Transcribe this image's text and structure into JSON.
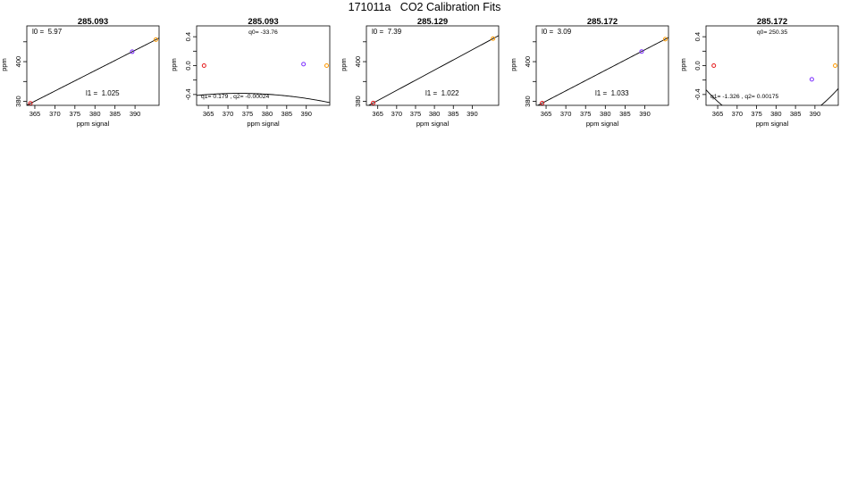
{
  "page": {
    "title": "171011a   CO2 Calibration Fits"
  },
  "chart_data": [
    {
      "type": "line",
      "title": "285.093",
      "xlabel": "ppm signal",
      "ylabel": "ppm",
      "xlim": [
        363,
        396
      ],
      "ylim": [
        378,
        418
      ],
      "xticks": [
        365,
        370,
        375,
        380,
        385,
        390
      ],
      "yticks": [
        380,
        390,
        400,
        410
      ],
      "yticklabels": [
        "380",
        "",
        "400",
        ""
      ],
      "fit": {
        "kind": "linear",
        "intercept": 5.97,
        "slope": 1.025
      },
      "points": [
        {
          "x": 363.9,
          "y": 379.0,
          "color": "#e41a1c"
        },
        {
          "x": 389.3,
          "y": 405.0,
          "color": "#7b2cff"
        },
        {
          "x": 395.2,
          "y": 411.1,
          "color": "#ff9900"
        }
      ],
      "annotations": [
        {
          "text": "l0 =  5.97",
          "pos": "top-left"
        },
        {
          "text": "l1 =  1.025",
          "pos": "bottom-right"
        }
      ]
    },
    {
      "type": "line",
      "title": "285.093",
      "xlabel": "ppm signal",
      "ylabel": "ppm",
      "xlim": [
        362,
        396
      ],
      "ylim": [
        -0.55,
        0.55
      ],
      "xticks": [
        365,
        370,
        375,
        380,
        385,
        390
      ],
      "yticks": [
        -0.4,
        -0.2,
        0.0,
        0.2,
        0.4
      ],
      "yticklabels": [
        "-0.4",
        "",
        "0.0",
        "",
        "0.4"
      ],
      "fit": {
        "kind": "quadratic",
        "q0": -33.76,
        "q1": 0.179,
        "q2": -0.00024
      },
      "points": [
        {
          "x": 363.9,
          "y": 0.0,
          "color": "#e41a1c"
        },
        {
          "x": 389.3,
          "y": 0.02,
          "color": "#7b2cff"
        },
        {
          "x": 395.2,
          "y": 0.0,
          "color": "#ff9900"
        }
      ],
      "annotations": [
        {
          "text": "q0= -33.76",
          "pos": "top-center"
        },
        {
          "text": "q1= 0.179 , q2= -0.00024",
          "pos": "bottom-left"
        }
      ]
    },
    {
      "type": "line",
      "title": "285.129",
      "xlabel": "ppm signal",
      "ylabel": "ppm",
      "xlim": [
        362,
        397
      ],
      "ylim": [
        378,
        418
      ],
      "xticks": [
        365,
        370,
        375,
        380,
        385,
        390
      ],
      "yticks": [
        380,
        390,
        400,
        410
      ],
      "yticklabels": [
        "380",
        "",
        "400",
        ""
      ],
      "fit": {
        "kind": "linear",
        "intercept": 7.39,
        "slope": 1.022
      },
      "points": [
        {
          "x": 363.8,
          "y": 379.2,
          "color": "#e41a1c"
        },
        {
          "x": 395.5,
          "y": 411.6,
          "color": "#ff9900"
        }
      ],
      "annotations": [
        {
          "text": "l0 =  7.39",
          "pos": "top-left"
        },
        {
          "text": "l1 =  1.022",
          "pos": "bottom-right"
        }
      ]
    },
    {
      "type": "line",
      "title": "285.172",
      "xlabel": "ppm signal",
      "ylabel": "ppm",
      "xlim": [
        362.5,
        396
      ],
      "ylim": [
        378,
        418
      ],
      "xticks": [
        365,
        370,
        375,
        380,
        385,
        390
      ],
      "yticks": [
        380,
        390,
        400,
        410
      ],
      "yticklabels": [
        "380",
        "",
        "400",
        ""
      ],
      "fit": {
        "kind": "linear",
        "intercept": 3.09,
        "slope": 1.033
      },
      "points": [
        {
          "x": 364.0,
          "y": 379.1,
          "color": "#e41a1c"
        },
        {
          "x": 389.2,
          "y": 405.1,
          "color": "#7b2cff"
        },
        {
          "x": 395.2,
          "y": 411.3,
          "color": "#ff9900"
        }
      ],
      "annotations": [
        {
          "text": "l0 =  3.09",
          "pos": "top-left"
        },
        {
          "text": "l1 =  1.033",
          "pos": "bottom-right"
        }
      ]
    },
    {
      "type": "line",
      "title": "285.172",
      "xlabel": "ppm signal",
      "ylabel": "ppm",
      "xlim": [
        362,
        396
      ],
      "ylim": [
        -0.55,
        0.55
      ],
      "xticks": [
        365,
        370,
        375,
        380,
        385,
        390
      ],
      "yticks": [
        -0.4,
        -0.2,
        0.0,
        0.2,
        0.4
      ],
      "yticklabels": [
        "-0.4",
        "",
        "0.0",
        "",
        "0.4"
      ],
      "fit": {
        "kind": "quadratic",
        "q0": 250.35,
        "q1": -1.326,
        "q2": 0.00175
      },
      "points": [
        {
          "x": 364.0,
          "y": 0.0,
          "color": "#e41a1c"
        },
        {
          "x": 389.2,
          "y": -0.19,
          "color": "#7b2cff"
        },
        {
          "x": 395.2,
          "y": 0.0,
          "color": "#ff9900"
        }
      ],
      "annotations": [
        {
          "text": "q0= 250.35",
          "pos": "top-center"
        },
        {
          "text": "q1= -1.326 , q2= 0.00175",
          "pos": "bottom-left"
        }
      ]
    }
  ]
}
